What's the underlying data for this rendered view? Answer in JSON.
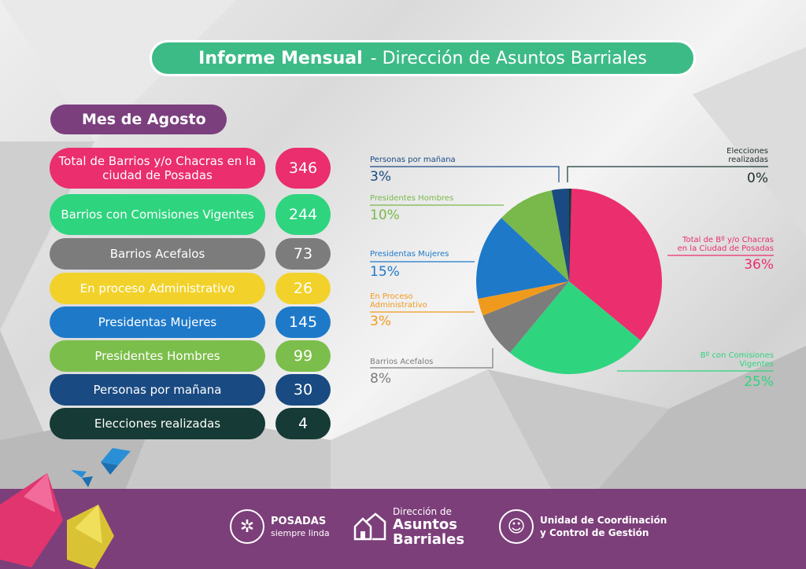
{
  "header": {
    "title_bold": "Informe Mensual",
    "title_rest": "- Dirección de Asuntos Barriales"
  },
  "month": "Mes de Agosto",
  "stats": [
    {
      "label": "Total de Barrios y/o Chacras en la ciudad de Posadas",
      "value": "346",
      "color": "#ea2e6e"
    },
    {
      "label": "Barrios con Comisiones Vigentes",
      "value": "244",
      "color": "#2fd47f"
    },
    {
      "label": "Barrios Acefalos",
      "value": "73",
      "color": "#7c7c7c"
    },
    {
      "label": "En proceso Administrativo",
      "value": "26",
      "color": "#f2d22a"
    },
    {
      "label": "Presidentas Mujeres",
      "value": "145",
      "color": "#1e79c9"
    },
    {
      "label": "Presidentes Hombres",
      "value": "99",
      "color": "#7cbe4b"
    },
    {
      "label": "Personas por mañana",
      "value": "30",
      "color": "#194a82"
    },
    {
      "label": "Elecciones realizadas",
      "value": "4",
      "color": "#163a35"
    }
  ],
  "chart_data": {
    "type": "pie",
    "slices": [
      {
        "name": "Total de Bº y/o Chacras en la Ciudad de Posadas",
        "value": 36,
        "label": "36%",
        "color": "#ea2e6e"
      },
      {
        "name": "Bº con Comisiones Vigentes",
        "value": 25,
        "label": "25%",
        "color": "#2fd47f"
      },
      {
        "name": "Barrios Acefalos",
        "value": 8,
        "label": "8%",
        "color": "#7c7c7c"
      },
      {
        "name": "En Proceso Administrativo",
        "value": 3,
        "label": "3%",
        "color": "#f09a1d"
      },
      {
        "name": "Presidentas Mujeres",
        "value": 15,
        "label": "15%",
        "color": "#1e79c9"
      },
      {
        "name": "Presidentes Hombres",
        "value": 10,
        "label": "10%",
        "color": "#79b84a"
      },
      {
        "name": "Personas por mañana",
        "value": 3,
        "label": "3%",
        "color": "#194a82"
      },
      {
        "name": "Elecciones realizadas",
        "value": 0,
        "label": "0%",
        "color": "#163a35"
      }
    ]
  },
  "footer": {
    "logo1_line1": "POSADAS",
    "logo1_line2": "siempre linda",
    "logo2_line1": "Dirección de",
    "logo2_line2": "Asuntos",
    "logo2_line3": "Barriales",
    "logo3_line1": "Unidad de Coordinación",
    "logo3_line2": "y Control de Gestión"
  }
}
